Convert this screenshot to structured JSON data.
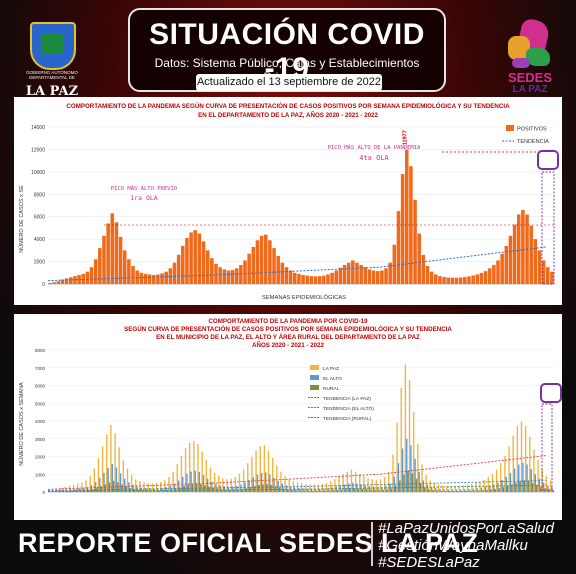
{
  "header": {
    "title": "SITUACIÓN COVID -19",
    "subtitle": "Datos: Sistema Público, Cajas y Establecimientos Privados",
    "updated": "Actualizado el  13  septiembre  de 2022",
    "left_logo_caption": "GOBIERNO AUTÓNOMO DEPARTAMENTAL DE",
    "left_logo_name": "LA PAZ",
    "right_logo_name": "SEDES",
    "right_logo_sub": "LA PAZ"
  },
  "footer": {
    "main": "REPORTE OFICIAL SEDES LA PAZ",
    "hashtags": [
      "#LaPazUnidosPorLaSalud",
      "#GestiónWaynaMallku",
      "#SEDESLaPaz"
    ]
  },
  "colors": {
    "bar_orange": "#f06a1c",
    "trend_blue": "#2c6fd1",
    "lapaz_yellow": "#f2b441",
    "elalto_blue": "#5a9bd5",
    "rural_olive": "#8a8a3a",
    "title_red": "#c00000"
  },
  "chart_data": [
    {
      "type": "bar",
      "title": "COMPORTAMIENTO DE LA PANDEMIA SEGÚN CURVA DE PRESENTACIÓN DE CASOS POSITIVOS POR SEMANA EPIDEMIOLÓGICA Y SU TENDENCIA",
      "subtitle": "EN EL DEPARTAMENTO DE LA PAZ, AÑOS 2020 - 2021 - 2022",
      "ylabel": "NÚMERO DE CASOS x SE",
      "xlabel": "SEMANAS EPIDEMIOLÓGICAS",
      "ylim": [
        0,
        14000
      ],
      "yticks": [
        0,
        2000,
        4000,
        6000,
        8000,
        10000,
        12000,
        14000
      ],
      "legend": [
        "POSITIVOS",
        "TENDENCIA"
      ],
      "legend_position": "top-right",
      "annotations": [
        {
          "text": "PICO MÁS ALTO PREVIO",
          "sub": "1ra OLA"
        },
        {
          "text": "PICO MÁS ALTO DE LA PANDEMIA",
          "sub": "4ta OLA"
        }
      ],
      "peak_label": "11977",
      "series": [
        {
          "name": "POSITIVOS",
          "values": [
            100,
            150,
            250,
            400,
            500,
            600,
            700,
            800,
            900,
            1100,
            1500,
            2200,
            3200,
            4300,
            5400,
            6300,
            5500,
            4200,
            3000,
            2200,
            1600,
            1200,
            1000,
            900,
            850,
            800,
            850,
            950,
            1100,
            1400,
            1900,
            2600,
            3400,
            4100,
            4600,
            4800,
            4500,
            3800,
            3000,
            2300,
            1800,
            1500,
            1300,
            1200,
            1250,
            1400,
            1700,
            2100,
            2700,
            3300,
            3900,
            4300,
            4400,
            3900,
            3200,
            2500,
            1900,
            1500,
            1200,
            1000,
            900,
            800,
            750,
            700,
            680,
            700,
            750,
            850,
            1000,
            1200,
            1450,
            1700,
            1900,
            2100,
            1900,
            1700,
            1500,
            1300,
            1200,
            1150,
            1200,
            1400,
            1900,
            3500,
            6500,
            9800,
            11977,
            10500,
            7500,
            4500,
            2600,
            1600,
            1100,
            850,
            700,
            620,
            580,
            560,
            560,
            580,
            620,
            680,
            760,
            860,
            980,
            1150,
            1400,
            1700,
            2100,
            2700,
            3400,
            4300,
            5300,
            6200,
            6600,
            6200,
            5200,
            4000,
            3000,
            2100,
            1500,
            1100
          ]
        }
      ],
      "trend_points": [
        [
          0,
          300
        ],
        [
          40,
          800
        ],
        [
          80,
          1500
        ],
        [
          120,
          3300
        ]
      ]
    },
    {
      "type": "bar",
      "title": "COMPORTAMIENTO DE LA PANDEMIA POR COVID-19",
      "subtitle": "SEGÚN CURVA DE PRESENTACIÓN DE CASOS POSITIVOS POR SEMANA EPIDEMIOLÓGICA Y SU TENDENCIA",
      "subtitle2": "EN EL  MUNICIPIO DE LA PAZ, EL ALTO Y ÁREA RURAL DEL DEPARTAMENTO DE LA PAZ",
      "subtitle3": "AÑOS 2020 - 2021 - 2022",
      "ylabel": "NÚMERO DE CASOS x SEMANA",
      "ylim": [
        0,
        8000
      ],
      "yticks": [
        0,
        1000,
        2000,
        3000,
        4000,
        5000,
        6000,
        7000,
        8000
      ],
      "legend": [
        "LA PAZ",
        "EL ALTO",
        "RURAL",
        "TENDENCIA (LA PAZ)",
        "TENDENCIA (EL ALTO)",
        "TENDENCIA (RURAL)"
      ],
      "legend_position": "top-right",
      "series": [
        {
          "name": "LA PAZ",
          "values": [
            60,
            90,
            150,
            240,
            300,
            360,
            420,
            480,
            540,
            660,
            900,
            1320,
            1920,
            2580,
            3240,
            3780,
            3300,
            2520,
            1800,
            1320,
            960,
            720,
            600,
            540,
            510,
            480,
            510,
            570,
            660,
            840,
            1140,
            1560,
            2040,
            2460,
            2760,
            2880,
            2700,
            2280,
            1800,
            1380,
            1080,
            900,
            780,
            720,
            750,
            840,
            1020,
            1260,
            1620,
            1980,
            2340,
            2580,
            2640,
            2340,
            1920,
            1500,
            1140,
            900,
            720,
            600,
            540,
            480,
            450,
            420,
            410,
            420,
            450,
            510,
            600,
            720,
            870,
            1020,
            1140,
            1260,
            1140,
            1020,
            900,
            780,
            720,
            690,
            720,
            840,
            1140,
            2100,
            3900,
            5880,
            7180,
            6300,
            4500,
            2700,
            1560,
            960,
            660,
            510,
            420,
            370,
            350,
            340,
            340,
            350,
            370,
            410,
            460,
            520,
            590,
            690,
            840,
            1020,
            1260,
            1620,
            2040,
            2580,
            3180,
            3720,
            3960,
            3720,
            3120,
            2400,
            1800,
            1260,
            900,
            660
          ]
        },
        {
          "name": "EL ALTO",
          "values": [
            25,
            38,
            63,
            100,
            125,
            150,
            175,
            200,
            225,
            275,
            375,
            550,
            800,
            1075,
            1350,
            1575,
            1375,
            1050,
            750,
            550,
            400,
            300,
            250,
            225,
            213,
            200,
            213,
            238,
            275,
            350,
            475,
            650,
            850,
            1025,
            1150,
            1200,
            1125,
            950,
            750,
            575,
            450,
            375,
            325,
            300,
            313,
            350,
            425,
            525,
            675,
            825,
            975,
            1075,
            1100,
            975,
            800,
            625,
            475,
            375,
            300,
            250,
            225,
            200,
            188,
            175,
            170,
            175,
            188,
            213,
            250,
            300,
            363,
            425,
            475,
            525,
            475,
            425,
            375,
            325,
            300,
            288,
            300,
            350,
            475,
            875,
            1625,
            2450,
            2994,
            2625,
            1875,
            1125,
            650,
            400,
            275,
            213,
            175,
            155,
            145,
            140,
            140,
            145,
            155,
            170,
            190,
            215,
            245,
            288,
            350,
            425,
            525,
            675,
            850,
            1075,
            1325,
            1550,
            1650,
            1550,
            1300,
            1000,
            750,
            525,
            375,
            275
          ]
        },
        {
          "name": "RURAL",
          "values": [
            10,
            15,
            25,
            40,
            50,
            60,
            70,
            80,
            90,
            110,
            150,
            220,
            320,
            430,
            540,
            630,
            550,
            420,
            300,
            220,
            160,
            120,
            100,
            90,
            85,
            80,
            85,
            95,
            110,
            140,
            190,
            260,
            340,
            410,
            460,
            480,
            450,
            380,
            300,
            230,
            180,
            150,
            130,
            120,
            125,
            140,
            170,
            210,
            270,
            330,
            390,
            430,
            440,
            390,
            320,
            250,
            190,
            150,
            120,
            100,
            90,
            80,
            75,
            70,
            68,
            70,
            75,
            85,
            100,
            120,
            145,
            170,
            190,
            210,
            190,
            170,
            150,
            130,
            120,
            115,
            120,
            140,
            190,
            350,
            650,
            980,
            1198,
            1050,
            750,
            450,
            260,
            160,
            110,
            85,
            70,
            62,
            58,
            56,
            56,
            58,
            62,
            68,
            76,
            86,
            98,
            115,
            140,
            170,
            210,
            270,
            340,
            430,
            530,
            620,
            660,
            620,
            520,
            400,
            300,
            210,
            150,
            110
          ]
        }
      ],
      "trends": [
        {
          "name": "TENDENCIA (LA PAZ)",
          "points": [
            [
              0,
              150
            ],
            [
              40,
              500
            ],
            [
              80,
              1000
            ],
            [
              120,
              2050
            ]
          ]
        },
        {
          "name": "TENDENCIA (EL ALTO)",
          "points": [
            [
              0,
              80
            ],
            [
              60,
              300
            ],
            [
              120,
              650
            ]
          ]
        },
        {
          "name": "TENDENCIA (RURAL)",
          "points": [
            [
              0,
              30
            ],
            [
              60,
              150
            ],
            [
              120,
              380
            ]
          ]
        }
      ]
    }
  ]
}
